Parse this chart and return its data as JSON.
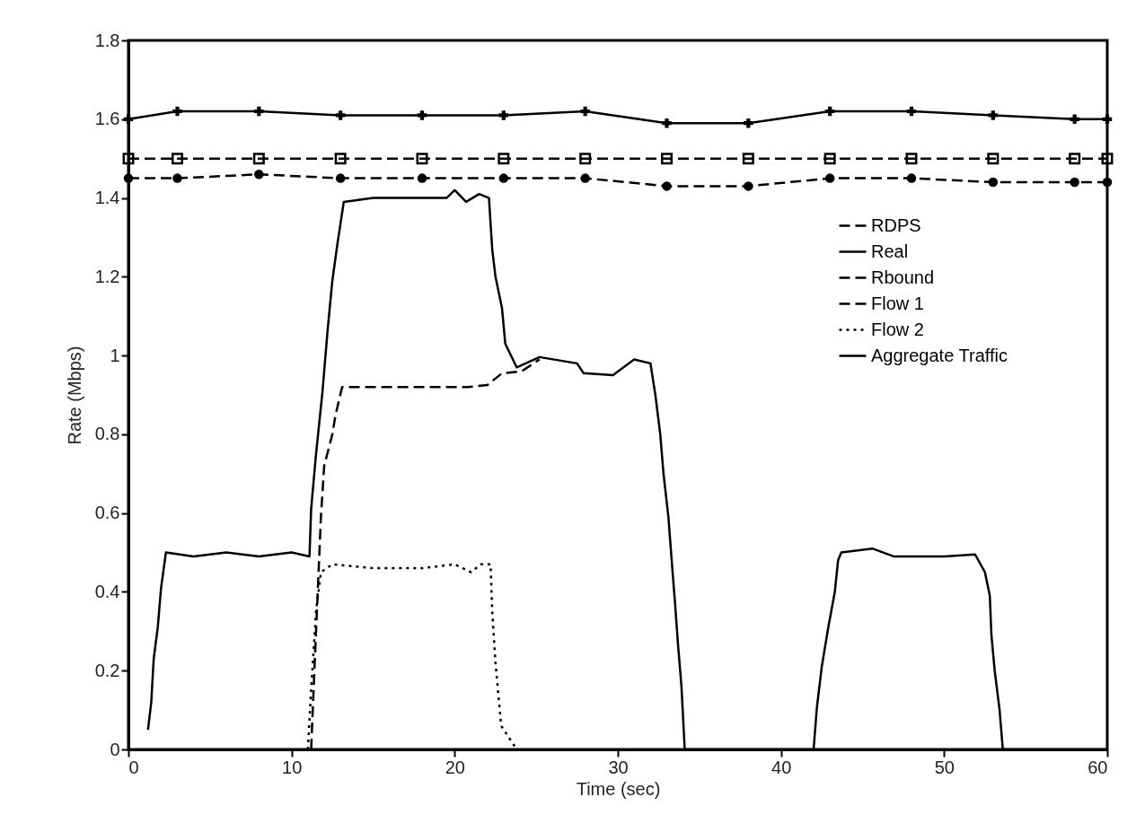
{
  "chart_data": {
    "type": "line",
    "xlabel": "Time (sec)",
    "ylabel": "Rate (Mbps)",
    "xlim": [
      0,
      60
    ],
    "ylim": [
      0,
      1.8
    ],
    "xticks": [
      0,
      10,
      20,
      30,
      40,
      50,
      60
    ],
    "yticks": [
      0,
      0.2,
      0.4,
      0.6,
      0.8,
      1,
      1.2,
      1.4,
      1.6,
      1.8
    ],
    "grid": false,
    "legend": "top right",
    "series": [
      {
        "name": "RDPS",
        "color": "#000000",
        "line_style": "dashed",
        "marker": "circle",
        "x": [
          0,
          3,
          8,
          13,
          18,
          23,
          28,
          33,
          38,
          43,
          48,
          53,
          58,
          60
        ],
        "values": [
          1.45,
          1.45,
          1.46,
          1.45,
          1.45,
          1.45,
          1.45,
          1.43,
          1.43,
          1.45,
          1.45,
          1.44,
          1.44,
          1.44
        ]
      },
      {
        "name": "Real",
        "color": "#000000",
        "line_style": "solid",
        "marker": "cross",
        "x": [
          0,
          3,
          8,
          13,
          18,
          23,
          28,
          33,
          38,
          43,
          48,
          53,
          58,
          60
        ],
        "values": [
          1.6,
          1.62,
          1.62,
          1.61,
          1.61,
          1.61,
          1.62,
          1.59,
          1.59,
          1.62,
          1.62,
          1.61,
          1.6,
          1.6
        ]
      },
      {
        "name": "Rbound",
        "color": "#000000",
        "line_style": "dashed",
        "marker": "square",
        "x": [
          0,
          3,
          8,
          13,
          18,
          23,
          28,
          33,
          38,
          43,
          48,
          53,
          58,
          60
        ],
        "values": [
          1.5,
          1.5,
          1.5,
          1.5,
          1.5,
          1.5,
          1.5,
          1.5,
          1.5,
          1.5,
          1.5,
          1.5,
          1.5,
          1.5
        ]
      },
      {
        "name": "Flow 1",
        "color": "#000000",
        "line_style": "dashed",
        "marker": "none",
        "x": [
          11.2,
          11.5,
          11.8,
          12,
          12.5,
          12.7,
          13.1,
          15,
          18,
          20.8,
          22,
          22.9,
          24.1,
          25.2
        ],
        "values": [
          0,
          0.3,
          0.59,
          0.72,
          0.8,
          0.85,
          0.92,
          0.92,
          0.92,
          0.92,
          0.925,
          0.955,
          0.96,
          0.99
        ]
      },
      {
        "name": "Flow 2",
        "color": "#000000",
        "line_style": "dotted",
        "marker": "none",
        "x": [
          11,
          11.2,
          11.5,
          11.8,
          12.5,
          15,
          18,
          20,
          21,
          21.6,
          22.2,
          22.3,
          22.5,
          22.85,
          23.8
        ],
        "values": [
          0,
          0.15,
          0.35,
          0.45,
          0.47,
          0.46,
          0.46,
          0.47,
          0.45,
          0.47,
          0.47,
          0.35,
          0.22,
          0.06,
          0
        ]
      },
      {
        "name": "Aggregate Traffic",
        "color": "#000000",
        "line_style": "solid",
        "marker": "none",
        "x": [
          1.2,
          1.4,
          1.55,
          1.8,
          2,
          2.3,
          4,
          6,
          8,
          10,
          11.1,
          11.2,
          11.5,
          11.9,
          12.2,
          12.5,
          12.8,
          13.2,
          15,
          18,
          19.5,
          20,
          20.7,
          21.5,
          22.1,
          22.3,
          22.5,
          22.9,
          23.1,
          23.8,
          25.2,
          27.5,
          27.9,
          29.7,
          31,
          32,
          32.3,
          32.6,
          32.8,
          33.1,
          33.3,
          33.5,
          33.7,
          33.9,
          34.1,
          38,
          42,
          42.2,
          42.5,
          42.9,
          43.3,
          43.5,
          43.7,
          45.6,
          46.9,
          50,
          51.9,
          52.5,
          52.8,
          52.9,
          53.1,
          53.4,
          53.6,
          60
        ],
        "values": [
          0.05,
          0.12,
          0.23,
          0.31,
          0.41,
          0.5,
          0.49,
          0.5,
          0.49,
          0.5,
          0.49,
          0.61,
          0.75,
          0.91,
          1.06,
          1.19,
          1.28,
          1.39,
          1.4,
          1.4,
          1.4,
          1.42,
          1.39,
          1.41,
          1.4,
          1.27,
          1.2,
          1.12,
          1.03,
          0.97,
          0.996,
          0.98,
          0.955,
          0.95,
          0.99,
          0.98,
          0.9,
          0.8,
          0.7,
          0.59,
          0.48,
          0.375,
          0.26,
          0.16,
          0,
          0,
          0,
          0.106,
          0.21,
          0.31,
          0.4,
          0.48,
          0.5,
          0.51,
          0.49,
          0.49,
          0.495,
          0.45,
          0.39,
          0.29,
          0.2,
          0.1,
          0,
          0
        ]
      }
    ]
  }
}
